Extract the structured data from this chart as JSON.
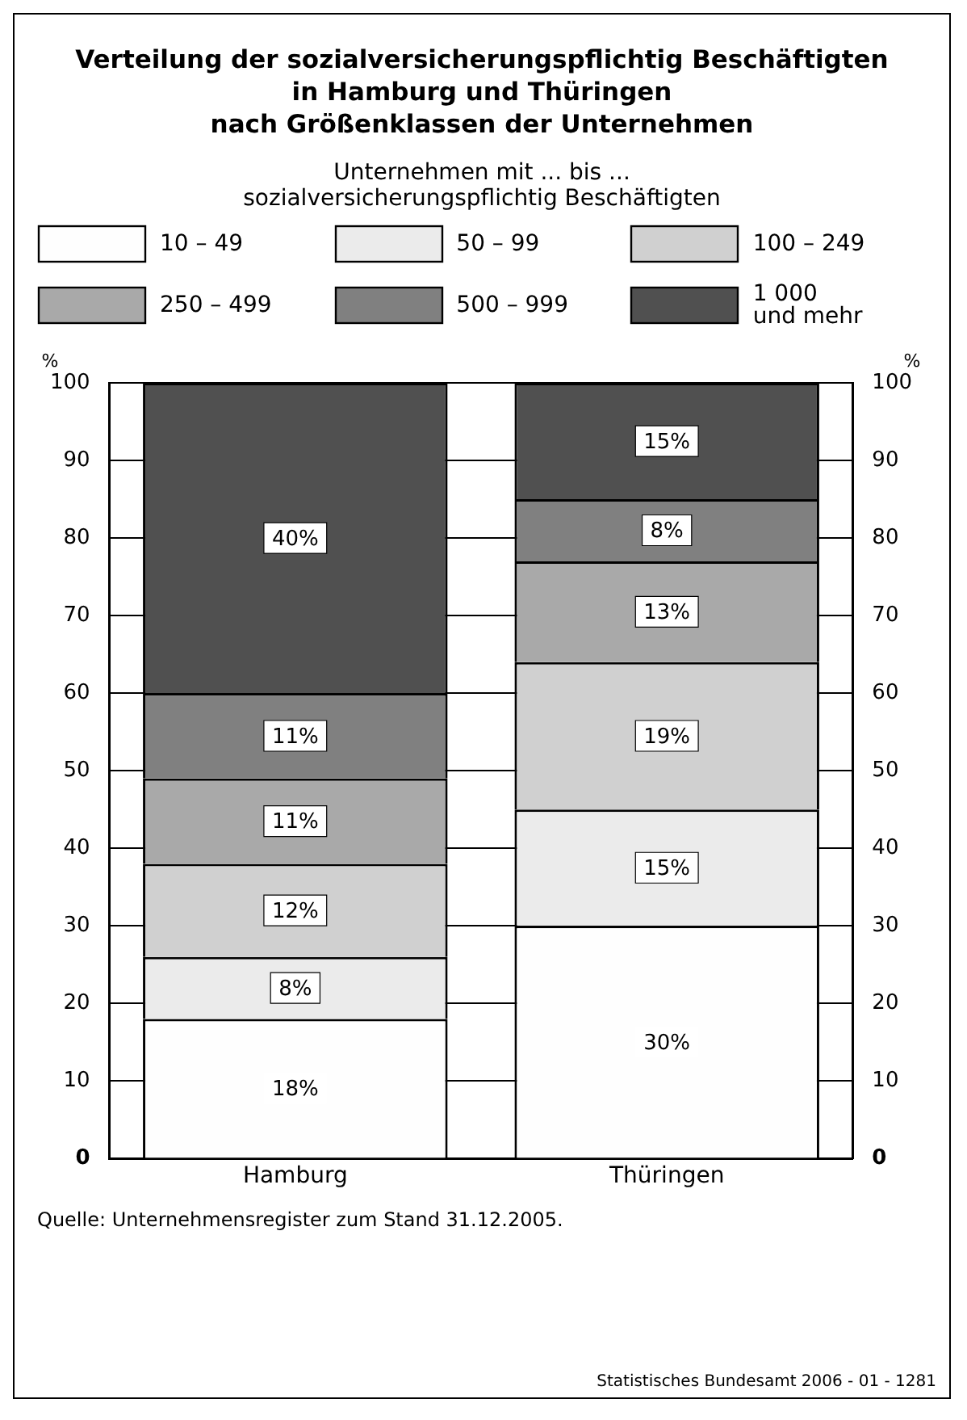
{
  "chart_data": {
    "type": "bar",
    "stacked": true,
    "title": "Verteilung der sozialversicherungspflichtig Beschäftigten\nin Hamburg und Thüringen\nnach Größenklassen der Unternehmen",
    "legend_title": "Unternehmen mit ... bis ...\nsozialversicherungspflichtig Beschäftigten",
    "ylabel": "%",
    "y2label": "%",
    "categories": [
      "Hamburg",
      "Thüringen"
    ],
    "series": [
      {
        "name": "10 – 49",
        "color": "#fefefe",
        "values": [
          18,
          30
        ],
        "value_labels": [
          "18%",
          "30%"
        ]
      },
      {
        "name": "50 – 99",
        "color": "#ebebeb",
        "values": [
          8,
          15
        ],
        "value_labels": [
          "8%",
          "15%"
        ]
      },
      {
        "name": "100 – 249",
        "color": "#d0d0d0",
        "values": [
          12,
          19
        ],
        "value_labels": [
          "12%",
          "19%"
        ]
      },
      {
        "name": "250 – 499",
        "color": "#a9a9a9",
        "values": [
          11,
          13
        ],
        "value_labels": [
          "11%",
          "13%"
        ]
      },
      {
        "name": "500 – 999",
        "color": "#808080",
        "values": [
          11,
          8
        ],
        "value_labels": [
          "11%",
          "8%"
        ]
      },
      {
        "name": "1 000\nund mehr",
        "color": "#505050",
        "values": [
          40,
          15
        ],
        "value_labels": [
          "40%",
          "15%"
        ]
      }
    ],
    "ylim": [
      0,
      100
    ],
    "yticks": [
      0,
      10,
      20,
      30,
      40,
      50,
      60,
      70,
      80,
      90,
      100
    ],
    "y2lim": [
      0,
      100
    ],
    "y2ticks": [
      0,
      10,
      20,
      30,
      40,
      50,
      60,
      70,
      80,
      90,
      100
    ],
    "grid": "y",
    "legend": "top",
    "annotations": [
      "Quelle: Unternehmensregister zum Stand 31.12.2005.",
      "Statistisches Bundesamt 2006 - 01 - 1281"
    ]
  }
}
